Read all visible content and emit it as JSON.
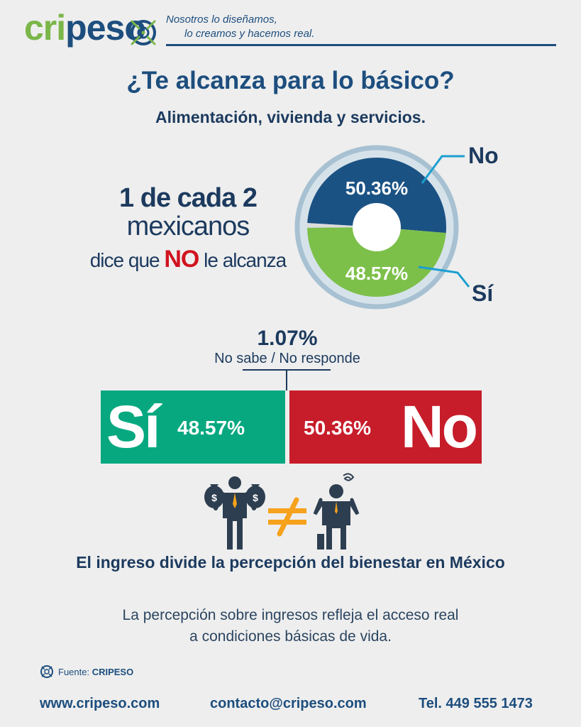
{
  "brand": {
    "logo_green": "cri",
    "logo_blue": "peso",
    "slogan_line1": "Nosotros lo diseñamos,",
    "slogan_line2": "lo creamos y hacemos real."
  },
  "title": "¿Te alcanza para lo básico?",
  "subtitle": "Alimentación, vivienda y servicios.",
  "headline": {
    "line1": "1 de cada 2",
    "line2": "mexicanos",
    "line3_pre": "dice que ",
    "line3_no": "NO",
    "line3_post": " le alcanza"
  },
  "chart_data": [
    {
      "type": "pie",
      "categories": [
        "No",
        "Sí",
        "No sabe / No responde"
      ],
      "values": [
        50.36,
        48.57,
        1.07
      ],
      "labels": [
        "50.36%",
        "48.57%",
        ""
      ],
      "colors": [
        "#1b5284",
        "#7cc04a",
        "#dcdcdc"
      ],
      "donut": true
    },
    {
      "type": "bar",
      "orientation": "horizontal-stacked",
      "categories": [
        "Sí",
        "No"
      ],
      "values": [
        48.57,
        50.36
      ],
      "labels": [
        "48.57%",
        "50.36%"
      ],
      "colors": [
        "#07a880",
        "#c71c2a"
      ]
    }
  ],
  "no_response": {
    "value": "1.07%",
    "label": "No sabe / No responde"
  },
  "percepcion_title": "El ingreso divide la percepción del bienestar en México",
  "description_line1": "La percepción sobre ingresos refleja el acceso real",
  "description_line2": "a condiciones básicas de vida.",
  "source": {
    "prefix": "Fuente: ",
    "name": "CRIPESO"
  },
  "footer": {
    "website": "www.cripeso.com",
    "email": "contacto@cripeso.com",
    "phone": "Tel. 449 555 1473"
  },
  "icons": [
    "crosshair-logo-icon",
    "rich-man-icon",
    "not-equal-icon",
    "stressed-man-icon",
    "source-logo-icon"
  ],
  "colors": {
    "navy": "#1d4e7e",
    "green_logo": "#7ab648",
    "teal": "#07a880",
    "red": "#c71c2a",
    "orange": "#f6a21c"
  }
}
